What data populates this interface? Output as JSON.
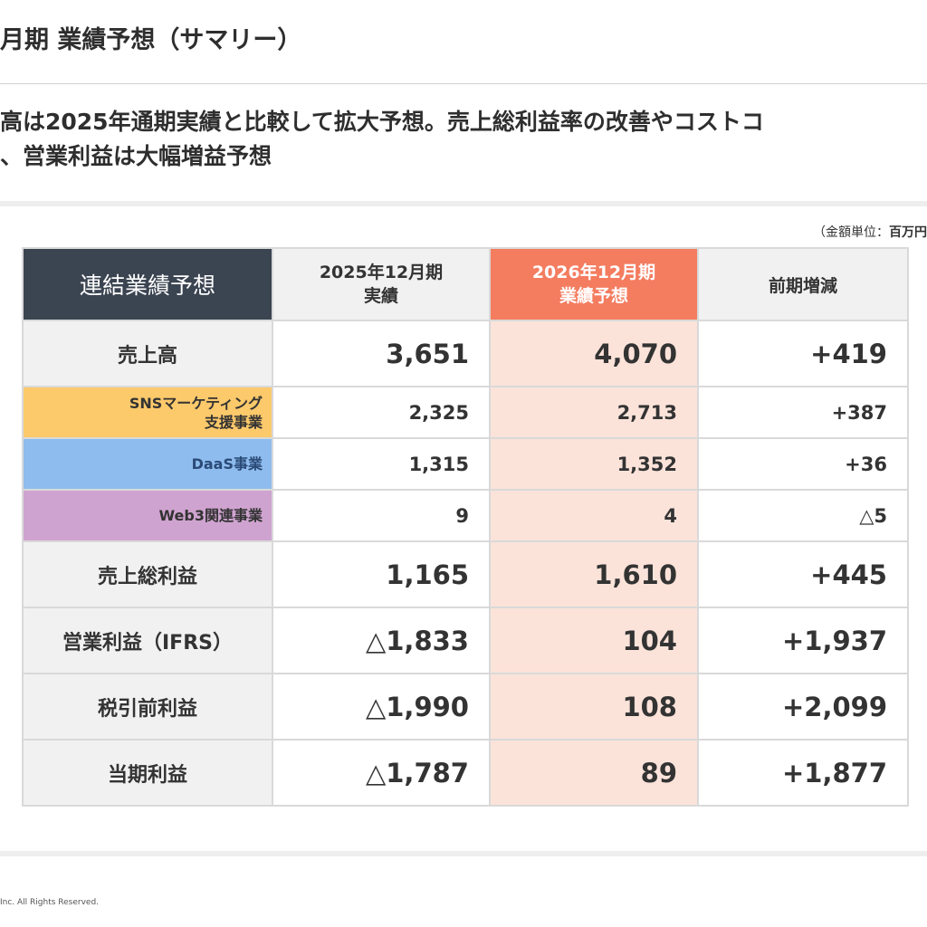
{
  "slide": {
    "title": "月期 業績予想（サマリー）",
    "lead_line1": "高は2025年通期実績と比較して拡大予想。売上総利益率の改善やコストコ",
    "lead_line2": "、営業利益は大幅増益予想",
    "unit_prefix": "（金額単位：",
    "unit_value": "百万円",
    "footer": "Inc. All Rights Reserved."
  },
  "table": {
    "header": {
      "label": "連結業績予想",
      "prev_line1": "2025年12月期",
      "prev_line2": "実績",
      "curr_line1": "2026年12月期",
      "curr_line2": "業績予想",
      "diff": "前期増減"
    },
    "rows": [
      {
        "label": "売上高",
        "prev": "3,651",
        "curr": "4,070",
        "diff": "+419"
      },
      {
        "label_line1": "SNSマーケティング",
        "label_line2": "支援事業",
        "prev": "2,325",
        "curr": "2,713",
        "diff": "+387"
      },
      {
        "label": "DaaS事業",
        "prev": "1,315",
        "curr": "1,352",
        "diff": "+36"
      },
      {
        "label": "Web3関連事業",
        "prev": "9",
        "curr": "4",
        "diff": "△5"
      },
      {
        "label": "売上総利益",
        "prev": "1,165",
        "curr": "1,610",
        "diff": "+445"
      },
      {
        "label": "営業利益（IFRS）",
        "prev": "△1,833",
        "curr": "104",
        "diff": "+1,937"
      },
      {
        "label": "税引前利益",
        "prev": "△1,990",
        "curr": "108",
        "diff": "+2,099"
      },
      {
        "label": "当期利益",
        "prev": "△1,787",
        "curr": "89",
        "diff": "+1,877"
      }
    ]
  },
  "colors": {
    "header_dark": "#3b4451",
    "forecast_accent": "#f47c5f",
    "forecast_tint": "#fbe3da",
    "segment_sns": "#fcc96b",
    "segment_daas": "#8ebcee",
    "segment_web3": "#cfa3d0"
  }
}
